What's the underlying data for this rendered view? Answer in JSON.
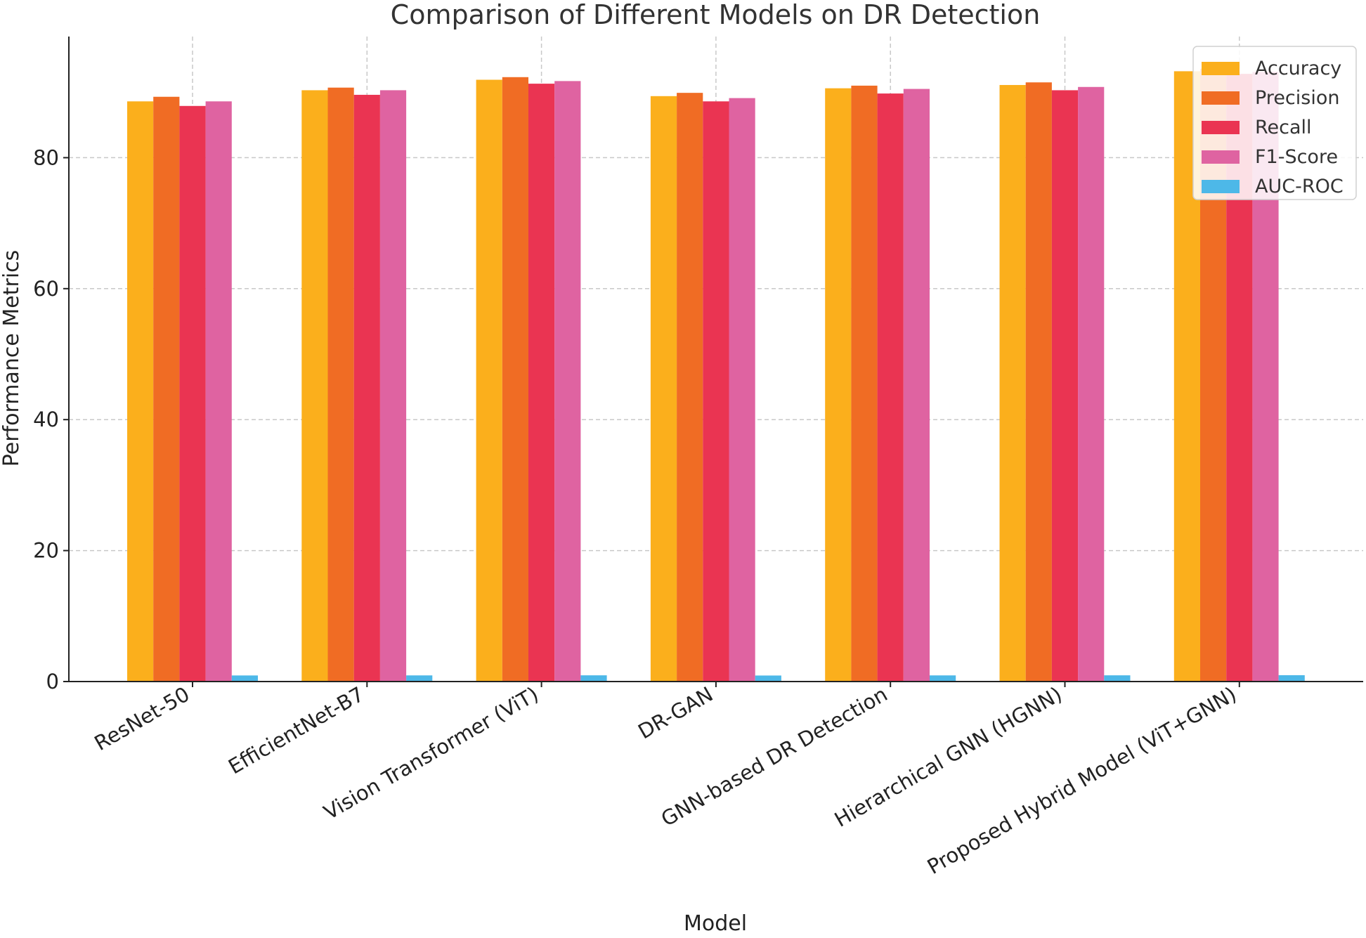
{
  "chart_data": {
    "type": "bar",
    "title": "Comparison of Different Models on DR Detection",
    "xlabel": "Model",
    "ylabel": "Performance Metrics",
    "ylim": [
      0,
      98.5
    ],
    "yticks": [
      0,
      20,
      40,
      60,
      80
    ],
    "grid": true,
    "legend_position": "top-right",
    "categories": [
      "ResNet-50",
      "EfficientNet-B7",
      "Vision Transformer (ViT)",
      "DR-GAN",
      "GNN-based DR Detection",
      "Hierarchical GNN (HGNN)",
      "Proposed Hybrid Model (ViT+GNN)"
    ],
    "series": [
      {
        "name": "Accuracy",
        "color": "#fbaf1c",
        "values": [
          88.6,
          90.3,
          91.9,
          89.4,
          90.6,
          91.1,
          93.2
        ]
      },
      {
        "name": "Precision",
        "color": "#f06c24",
        "values": [
          89.3,
          90.7,
          92.3,
          89.9,
          91.0,
          91.5,
          93.6
        ]
      },
      {
        "name": "Recall",
        "color": "#ea3452",
        "values": [
          87.9,
          89.6,
          91.3,
          88.6,
          89.8,
          90.3,
          92.8
        ]
      },
      {
        "name": "F1-Score",
        "color": "#df63a1",
        "values": [
          88.6,
          90.3,
          91.7,
          89.1,
          90.5,
          90.8,
          93.1
        ]
      },
      {
        "name": "AUC-ROC",
        "color": "#4db8e8",
        "values": [
          0.93,
          0.94,
          0.95,
          0.92,
          0.94,
          0.95,
          0.97
        ]
      }
    ]
  }
}
